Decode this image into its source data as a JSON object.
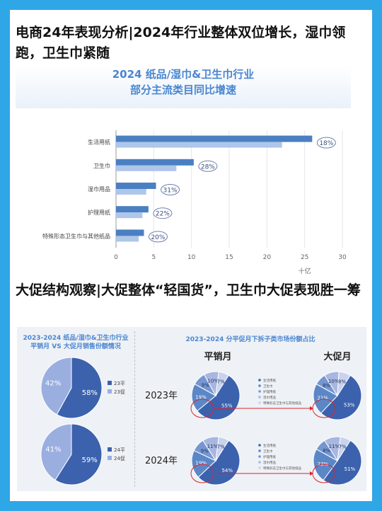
{
  "heading1": "电商24年表现分析|2024年行业整体双位增长，湿巾领跑，卫生巾紧随",
  "heading2": "大促结构观察|大促整体“轻国货”，卫生巾大促表现胜一筹",
  "top_panel": {
    "title_line1": "2024 纸品/湿巾&卫生巾行业",
    "title_line2": "部分主流类目同比增速"
  },
  "left_panel": {
    "title_line1": "2023-2024 纸品/湿巾&卫生巾行业",
    "title_line2": "平销月 VS 大促月销售份额情况"
  },
  "right_panel": {
    "title": "2023-2024 分平促月下拆子类市场份额占比",
    "col_left": "平销月",
    "col_right": "大促月",
    "row_2023": "2023年",
    "row_2024": "2024年"
  },
  "colors": {
    "dark_blue": "#3c62ae",
    "mid_blue": "#5b87c7",
    "light_blue": "#9aaee0",
    "bar_2023": "#aec6ea",
    "bar_2024": "#4a80c2"
  },
  "chart_data": [
    {
      "type": "bar",
      "orientation": "horizontal",
      "categories": [
        "生活用纸",
        "卫生巾",
        "湿巾用品",
        "护理用纸",
        "特殊形态卫生巾与其他纸品"
      ],
      "series": [
        {
          "values": [
            26,
            10.3,
            5.3,
            4.3,
            3.7
          ]
        },
        {
          "values": [
            22,
            8,
            4,
            3.5,
            3
          ]
        }
      ],
      "growth_labels": [
        "18%",
        "28%",
        "31%",
        "22%",
        "20%"
      ],
      "xlim": [
        0,
        30
      ],
      "xticks": [
        "0",
        "5",
        "10",
        "15",
        "20",
        "25",
        "30"
      ],
      "unit": "十亿",
      "grid": true
    },
    {
      "type": "pie",
      "labels": [
        "23平",
        "23促"
      ],
      "values": [
        58,
        42
      ],
      "value_labels": [
        "58%",
        "42%"
      ]
    },
    {
      "type": "pie",
      "labels": [
        "24平",
        "24促"
      ],
      "values": [
        59,
        41
      ],
      "value_labels": [
        "59%",
        "41%"
      ]
    },
    {
      "type": "pie",
      "labels": [
        "生活用纸",
        "卫生巾",
        "护理用纸",
        "湿巾用品",
        "特殊形态卫生巾与其他纸品"
      ],
      "values": [
        55,
        19,
        9,
        10,
        7
      ],
      "value_labels": [
        "55%",
        "19%",
        "9%",
        "10%",
        "7%"
      ]
    },
    {
      "type": "pie",
      "labels": [
        "生活用纸",
        "卫生巾",
        "护理用纸",
        "湿巾用品",
        "特殊形态卫生巾与其他纸品"
      ],
      "values": [
        53,
        21,
        8,
        10,
        8
      ],
      "value_labels": [
        "53%",
        "21%",
        "8%",
        "10%",
        "8%"
      ]
    },
    {
      "type": "pie",
      "labels": [
        "生活用纸",
        "卫生巾",
        "护理用纸",
        "湿巾用品",
        "特殊形态卫生巾与其他纸品"
      ],
      "values": [
        54,
        19,
        9,
        11,
        7
      ],
      "value_labels": [
        "54%",
        "19%",
        "9%",
        "11%",
        "7%"
      ]
    },
    {
      "type": "pie",
      "labels": [
        "生活用纸",
        "卫生巾",
        "护理用纸",
        "湿巾用品",
        "特殊形态卫生巾与其他纸品"
      ],
      "values": [
        51,
        23,
        8,
        11,
        7
      ],
      "value_labels": [
        "51%",
        "23%",
        "8%",
        "11%",
        "7%"
      ]
    }
  ]
}
